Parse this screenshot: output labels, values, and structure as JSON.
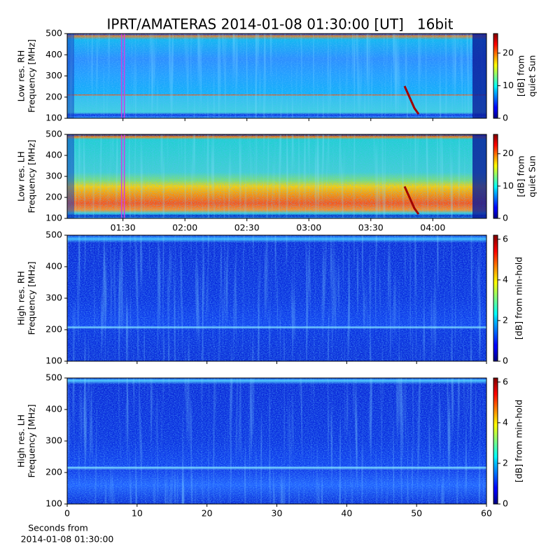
{
  "title": "IPRT/AMATERAS 2014-01-08 01:30:00 [UT]   16bit",
  "x_label": [
    "Seconds from",
    "2014-01-08 01:30:00"
  ],
  "chart_data": [
    {
      "type": "heatmap",
      "colormap": "jet",
      "y_label": [
        "Low res. RH",
        "Frequency [MHz]"
      ],
      "colorbar_label": [
        "[dB] from",
        "quiet Sun"
      ],
      "xlim": [
        63,
        266
      ],
      "xticks": [
        90,
        120,
        150,
        180,
        210,
        240
      ],
      "ylim": [
        100,
        500
      ],
      "yticks": [
        100,
        200,
        300,
        400,
        500
      ],
      "clim": [
        0,
        26
      ],
      "cticks": [
        0,
        10,
        20
      ],
      "marker_x": 90,
      "marker_color": "#d040e0"
    },
    {
      "type": "heatmap",
      "colormap": "jet",
      "y_label": [
        "Low res. LH",
        "Frequency [MHz]"
      ],
      "colorbar_label": [
        "[dB] from",
        "quiet Sun"
      ],
      "xlim": [
        63,
        266
      ],
      "xticks": [
        {
          "value": 90,
          "label": "01:30"
        },
        {
          "value": 120,
          "label": "02:00"
        },
        {
          "value": 150,
          "label": "02:30"
        },
        {
          "value": 180,
          "label": "03:00"
        },
        {
          "value": 210,
          "label": "03:30"
        },
        {
          "value": 240,
          "label": "04:00"
        }
      ],
      "ylim": [
        100,
        500
      ],
      "yticks": [
        100,
        200,
        300,
        400,
        500
      ],
      "clim": [
        0,
        26
      ],
      "cticks": [
        0,
        10,
        20
      ],
      "marker_x": 90,
      "marker_color": "#d040e0"
    },
    {
      "type": "heatmap",
      "colormap": "jet",
      "y_label": [
        "High res. RH",
        "Frequency [MHz]"
      ],
      "colorbar_label": [
        "[dB] from min-hold"
      ],
      "xlim": [
        0,
        60
      ],
      "xticks": [
        0,
        10,
        20,
        30,
        40,
        50,
        60
      ],
      "ylim": [
        100,
        500
      ],
      "yticks": [
        100,
        200,
        300,
        400,
        500
      ],
      "clim": [
        0,
        6.2
      ],
      "cticks": [
        0,
        2,
        4,
        6
      ]
    },
    {
      "type": "heatmap",
      "colormap": "jet",
      "y_label": [
        "High res. LH",
        "Frequency [MHz]"
      ],
      "colorbar_label": [
        "[dB] from min-hold"
      ],
      "xlim": [
        0,
        60
      ],
      "xticks": [
        0,
        10,
        20,
        30,
        40,
        50,
        60
      ],
      "ylim": [
        100,
        500
      ],
      "yticks": [
        100,
        200,
        300,
        400,
        500
      ],
      "clim": [
        0,
        6.2
      ],
      "cticks": [
        0,
        2,
        4,
        6
      ],
      "show_xtick_labels": true
    }
  ]
}
